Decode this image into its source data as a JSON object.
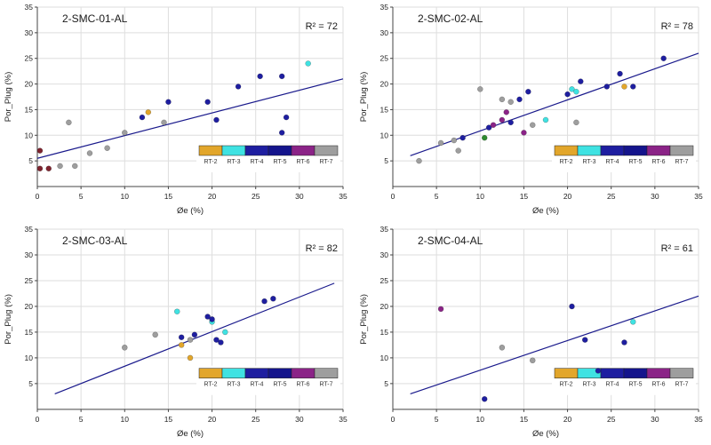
{
  "palette": {
    "RT-2": "#E2A62B",
    "RT-3": "#3FE2E2",
    "RT-4": "#1E1EA0",
    "RT-5": "#14148C",
    "RT-6": "#8B2387",
    "RT-7": "#9E9E9E",
    "green": "#2E8B2E",
    "dark-red": "#7E232E"
  },
  "trend_color": "#1A1A8C",
  "chart_data": [
    {
      "type": "scatter",
      "title": "2-SMC-01-AL",
      "r2_label": "R² = 72",
      "xlabel": "Øe (%)",
      "ylabel": "Por_Plug (%)",
      "xlim": [
        0,
        35
      ],
      "ylim": [
        0,
        35
      ],
      "xticks": [
        0,
        5,
        10,
        15,
        20,
        25,
        30,
        35
      ],
      "yticks": [
        5,
        10,
        15,
        20,
        25,
        30,
        35
      ],
      "grid": true,
      "legend": [
        "RT-2",
        "RT-3",
        "RT-4",
        "RT-5",
        "RT-6",
        "RT-7"
      ],
      "trend": {
        "x1": 0,
        "y1": 5.5,
        "x2": 35,
        "y2": 21
      },
      "points": [
        {
          "x": 0.3,
          "y": 7,
          "c": "dark-red"
        },
        {
          "x": 0.3,
          "y": 3.5,
          "c": "dark-red"
        },
        {
          "x": 1.3,
          "y": 3.5,
          "c": "dark-red"
        },
        {
          "x": 2.6,
          "y": 4,
          "c": "RT-7"
        },
        {
          "x": 3.6,
          "y": 12.5,
          "c": "RT-7"
        },
        {
          "x": 4.3,
          "y": 4,
          "c": "RT-7"
        },
        {
          "x": 6,
          "y": 6.5,
          "c": "RT-7"
        },
        {
          "x": 8,
          "y": 7.5,
          "c": "RT-7"
        },
        {
          "x": 10,
          "y": 10.5,
          "c": "RT-7"
        },
        {
          "x": 14.5,
          "y": 12.5,
          "c": "RT-7"
        },
        {
          "x": 12,
          "y": 13.5,
          "c": "RT-4"
        },
        {
          "x": 12.7,
          "y": 14.5,
          "c": "RT-2"
        },
        {
          "x": 15,
          "y": 16.5,
          "c": "RT-4"
        },
        {
          "x": 19.5,
          "y": 16.5,
          "c": "RT-4"
        },
        {
          "x": 20.5,
          "y": 13,
          "c": "RT-4"
        },
        {
          "x": 23,
          "y": 19.5,
          "c": "RT-4"
        },
        {
          "x": 25.5,
          "y": 21.5,
          "c": "RT-4"
        },
        {
          "x": 28,
          "y": 21.5,
          "c": "RT-4"
        },
        {
          "x": 28.5,
          "y": 13.5,
          "c": "RT-4"
        },
        {
          "x": 28,
          "y": 10.5,
          "c": "RT-4"
        },
        {
          "x": 31,
          "y": 24,
          "c": "RT-3"
        }
      ]
    },
    {
      "type": "scatter",
      "title": "2-SMC-02-AL",
      "r2_label": "R² = 78",
      "xlabel": "Øe (%)",
      "ylabel": "Por_Plug (%)",
      "xlim": [
        0,
        35
      ],
      "ylim": [
        0,
        35
      ],
      "xticks": [
        0,
        5,
        10,
        15,
        20,
        25,
        30,
        35
      ],
      "yticks": [
        5,
        10,
        15,
        20,
        25,
        30,
        35
      ],
      "grid": true,
      "legend": [
        "RT-2",
        "RT-3",
        "RT-4",
        "RT-5",
        "RT-6",
        "RT-7"
      ],
      "trend": {
        "x1": 2,
        "y1": 6,
        "x2": 35,
        "y2": 26
      },
      "points": [
        {
          "x": 3,
          "y": 5,
          "c": "RT-7"
        },
        {
          "x": 5.5,
          "y": 8.5,
          "c": "RT-7"
        },
        {
          "x": 7,
          "y": 9,
          "c": "RT-7"
        },
        {
          "x": 7.5,
          "y": 7,
          "c": "RT-7"
        },
        {
          "x": 10,
          "y": 19,
          "c": "RT-7"
        },
        {
          "x": 12.5,
          "y": 17,
          "c": "RT-7"
        },
        {
          "x": 13.5,
          "y": 16.5,
          "c": "RT-7"
        },
        {
          "x": 16,
          "y": 12,
          "c": "RT-7"
        },
        {
          "x": 21,
          "y": 12.5,
          "c": "RT-7"
        },
        {
          "x": 8,
          "y": 9.5,
          "c": "RT-4"
        },
        {
          "x": 10.5,
          "y": 9.5,
          "c": "green"
        },
        {
          "x": 11,
          "y": 11.5,
          "c": "RT-4"
        },
        {
          "x": 11.5,
          "y": 12,
          "c": "RT-6"
        },
        {
          "x": 12.5,
          "y": 13,
          "c": "RT-6"
        },
        {
          "x": 13,
          "y": 14.5,
          "c": "RT-6"
        },
        {
          "x": 15,
          "y": 10.5,
          "c": "RT-6"
        },
        {
          "x": 13.5,
          "y": 12.5,
          "c": "RT-4"
        },
        {
          "x": 14.5,
          "y": 17,
          "c": "RT-4"
        },
        {
          "x": 15.5,
          "y": 18.5,
          "c": "RT-4"
        },
        {
          "x": 17.5,
          "y": 13,
          "c": "RT-3"
        },
        {
          "x": 20,
          "y": 18,
          "c": "RT-4"
        },
        {
          "x": 20.5,
          "y": 19,
          "c": "RT-3"
        },
        {
          "x": 21,
          "y": 18.5,
          "c": "RT-3"
        },
        {
          "x": 21.5,
          "y": 20.5,
          "c": "RT-4"
        },
        {
          "x": 24.5,
          "y": 19.5,
          "c": "RT-4"
        },
        {
          "x": 26,
          "y": 22,
          "c": "RT-4"
        },
        {
          "x": 26.5,
          "y": 19.5,
          "c": "RT-2"
        },
        {
          "x": 27.5,
          "y": 19.5,
          "c": "RT-4"
        },
        {
          "x": 31,
          "y": 25,
          "c": "RT-4"
        }
      ]
    },
    {
      "type": "scatter",
      "title": "2-SMC-03-AL",
      "r2_label": "R² = 82",
      "xlabel": "Øe (%)",
      "ylabel": "Por_Plug (%)",
      "xlim": [
        0,
        35
      ],
      "ylim": [
        0,
        35
      ],
      "xticks": [
        0,
        5,
        10,
        15,
        20,
        25,
        30,
        35
      ],
      "yticks": [
        5,
        10,
        15,
        20,
        25,
        30,
        35
      ],
      "grid": true,
      "legend": [
        "RT-2",
        "RT-3",
        "RT-4",
        "RT-5",
        "RT-6",
        "RT-7"
      ],
      "trend": {
        "x1": 2,
        "y1": 3,
        "x2": 34,
        "y2": 24.5
      },
      "points": [
        {
          "x": 10,
          "y": 12,
          "c": "RT-7"
        },
        {
          "x": 13.5,
          "y": 14.5,
          "c": "RT-7"
        },
        {
          "x": 17.5,
          "y": 13.5,
          "c": "RT-7"
        },
        {
          "x": 16,
          "y": 19,
          "c": "RT-3"
        },
        {
          "x": 20,
          "y": 17,
          "c": "RT-3"
        },
        {
          "x": 21.5,
          "y": 15,
          "c": "RT-3"
        },
        {
          "x": 16.5,
          "y": 12.5,
          "c": "RT-2"
        },
        {
          "x": 17.5,
          "y": 10,
          "c": "RT-2"
        },
        {
          "x": 16.5,
          "y": 14,
          "c": "RT-4"
        },
        {
          "x": 18,
          "y": 14.5,
          "c": "RT-4"
        },
        {
          "x": 19.5,
          "y": 18,
          "c": "RT-4"
        },
        {
          "x": 20,
          "y": 17.5,
          "c": "RT-4"
        },
        {
          "x": 20.5,
          "y": 13.5,
          "c": "RT-4"
        },
        {
          "x": 21,
          "y": 13,
          "c": "RT-4"
        },
        {
          "x": 26,
          "y": 21,
          "c": "RT-4"
        },
        {
          "x": 27,
          "y": 21.5,
          "c": "RT-4"
        }
      ]
    },
    {
      "type": "scatter",
      "title": "2-SMC-04-AL",
      "r2_label": "R² = 61",
      "xlabel": "Øe (%)",
      "ylabel": "Por_Plug (%)",
      "xlim": [
        0,
        35
      ],
      "ylim": [
        0,
        35
      ],
      "xticks": [
        0,
        5,
        10,
        15,
        20,
        25,
        30,
        35
      ],
      "yticks": [
        5,
        10,
        15,
        20,
        25,
        30,
        35
      ],
      "grid": true,
      "legend": [
        "RT-2",
        "RT-3",
        "RT-4",
        "RT-5",
        "RT-6",
        "RT-7"
      ],
      "trend": {
        "x1": 2,
        "y1": 3,
        "x2": 35,
        "y2": 22
      },
      "points": [
        {
          "x": 5.5,
          "y": 19.5,
          "c": "RT-6"
        },
        {
          "x": 10.5,
          "y": 2,
          "c": "RT-4"
        },
        {
          "x": 12.5,
          "y": 12,
          "c": "RT-7"
        },
        {
          "x": 16,
          "y": 9.5,
          "c": "RT-7"
        },
        {
          "x": 20.5,
          "y": 20,
          "c": "RT-4"
        },
        {
          "x": 22,
          "y": 13.5,
          "c": "RT-4"
        },
        {
          "x": 23.5,
          "y": 7.5,
          "c": "RT-4"
        },
        {
          "x": 26.5,
          "y": 13,
          "c": "RT-4"
        },
        {
          "x": 27.5,
          "y": 17,
          "c": "RT-3"
        }
      ]
    }
  ]
}
